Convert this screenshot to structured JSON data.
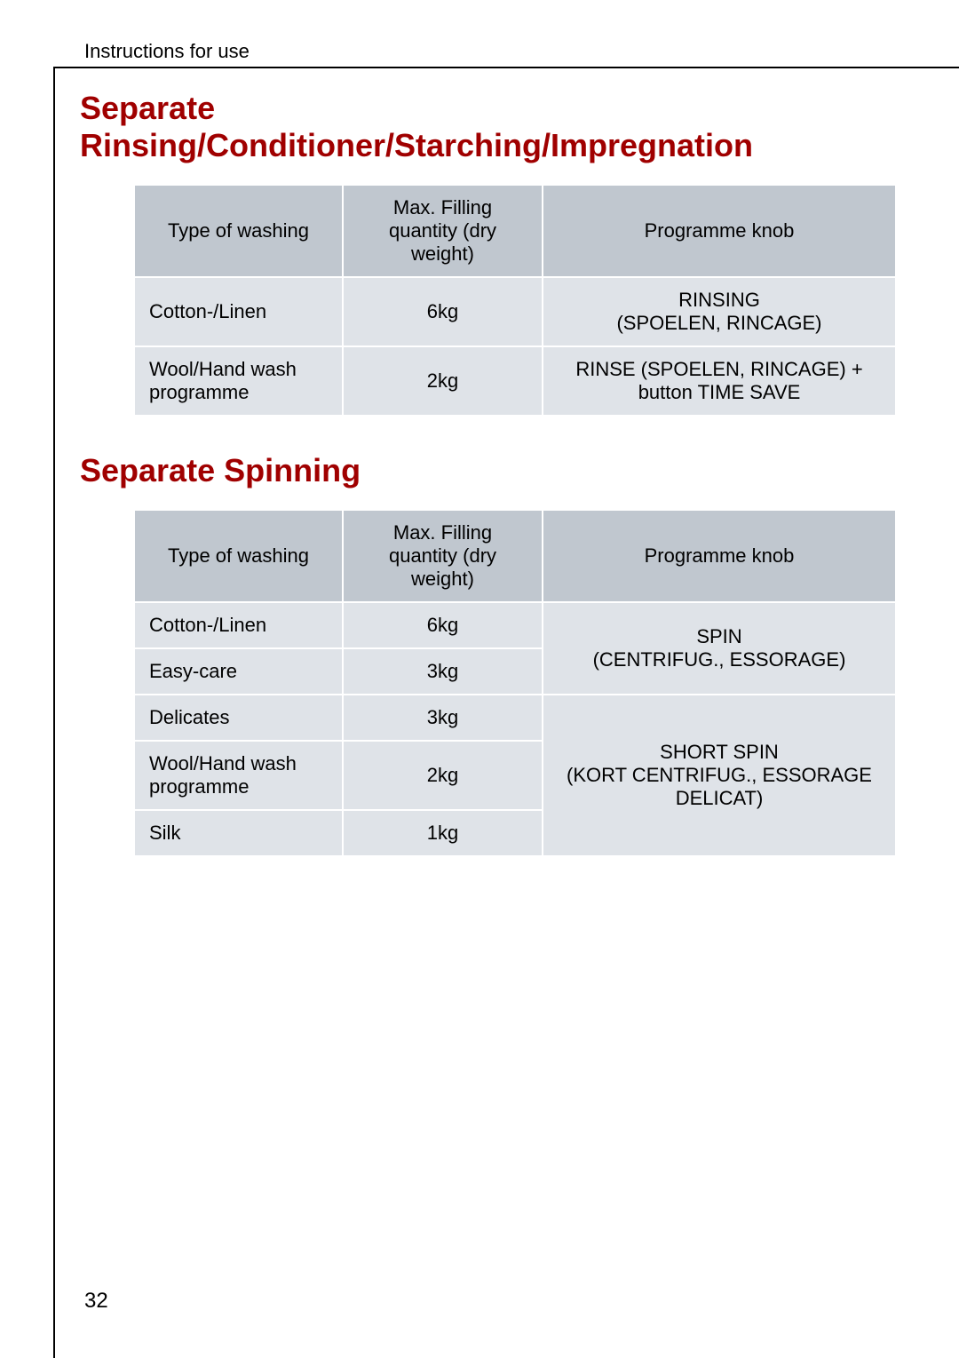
{
  "header": {
    "breadcrumb": "Instructions for use"
  },
  "section1": {
    "title": "Separate Rinsing/Conditioner/Starching/Impregnation",
    "columns": [
      "Type of washing",
      "Max. Filling quantity (dry weight)",
      "Programme knob"
    ],
    "rows": [
      {
        "type": "Cotton-/Linen",
        "qty": "6kg",
        "prog": "RINSING\n(SPOELEN, RINCAGE)"
      },
      {
        "type": "Wool/Hand wash programme",
        "qty": "2kg",
        "prog": "RINSE (SPOELEN, RINCAGE) + button TIME SAVE"
      }
    ]
  },
  "section2": {
    "title": "Separate Spinning",
    "columns": [
      "Type of washing",
      "Max. Filling quantity (dry weight)",
      "Programme knob"
    ],
    "rows": [
      {
        "type": "Cotton-/Linen",
        "qty": "6kg"
      },
      {
        "type": "Easy-care",
        "qty": "3kg"
      },
      {
        "type": "Delicates",
        "qty": "3kg"
      },
      {
        "type": "Wool/Hand wash programme",
        "qty": "2kg"
      },
      {
        "type": "Silk",
        "qty": "1kg"
      }
    ],
    "prog_group1": "SPIN\n(CENTRIFUG., ESSORAGE)",
    "prog_group2": "SHORT SPIN\n(KORT CENTRIFUG., ESSORAGE DELICAT)"
  },
  "page_number": "32",
  "colors": {
    "heading": "#a00000",
    "th_bg": "#c0c7cf",
    "td_bg": "#dfe3e8",
    "border": "#ffffff"
  }
}
